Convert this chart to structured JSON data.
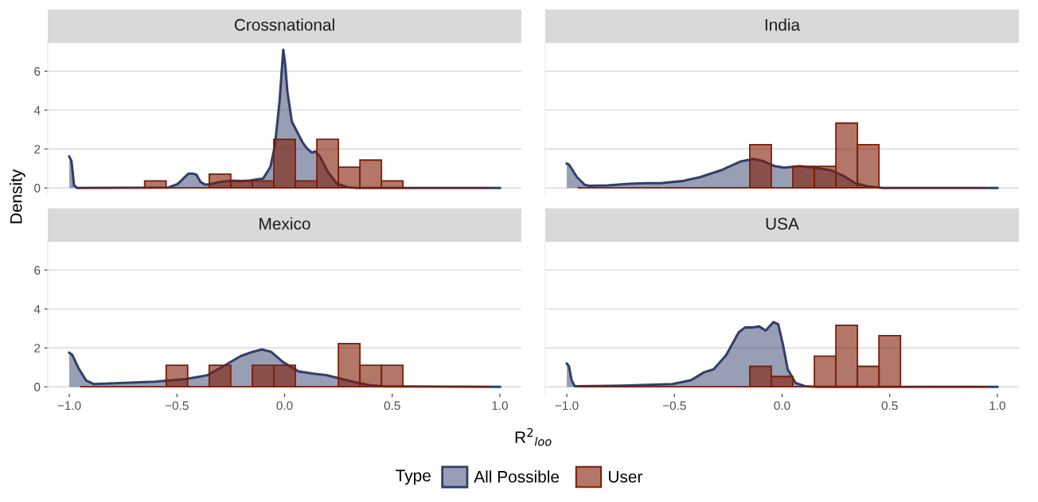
{
  "chart_data": [
    {
      "type": "histogram",
      "title": "Crossnational",
      "ylabel": "Density",
      "legend": "bottom",
      "legend_title": "Type",
      "tick_labels": "y",
      "grid": "y",
      "xlim": [
        -1.1,
        1.1
      ],
      "ylim": [
        -0.36,
        7.45
      ],
      "yticks": [
        0,
        2,
        4,
        6
      ],
      "bins": [
        -0.95,
        -0.85,
        -0.75,
        -0.65,
        -0.55,
        -0.45,
        -0.35,
        -0.25,
        -0.15,
        -0.05,
        0.05,
        0.15,
        0.25,
        0.35,
        0.45,
        0.55,
        0.65,
        0.75,
        0.85,
        0.95
      ],
      "series": [
        {
          "name": "All Possible",
          "type": "area",
          "color": "#323f6b",
          "x": [
            -1,
            -0.99,
            -0.978,
            -0.964,
            -0.54,
            -0.497,
            -0.447,
            -0.425,
            -0.41,
            -0.39,
            -0.368,
            -0.346,
            -0.3,
            -0.25,
            -0.2,
            -0.167,
            -0.124,
            -0.1,
            -0.066,
            -0.045,
            -0.023,
            -0.011,
            -0.006,
            0.003,
            0.013,
            0.034,
            0.063,
            0.085,
            0.106,
            0.128,
            0.142,
            0.164,
            0.2,
            0.243,
            0.293,
            0.336,
            1.0
          ],
          "values": [
            1.61,
            1.38,
            0.14,
            0,
            0.02,
            0.2,
            0.73,
            0.73,
            0.68,
            0.3,
            0.17,
            0.19,
            0.3,
            0.37,
            0.35,
            0.37,
            0.45,
            0.48,
            1.07,
            2.15,
            4.48,
            6.34,
            7.1,
            6.34,
            4.95,
            3.4,
            2.78,
            2.31,
            2.0,
            1.81,
            1.88,
            1.61,
            0.84,
            0.22,
            0.03,
            0,
            0
          ]
        },
        {
          "name": "User",
          "color": "#7f1d05",
          "values": [
            0,
            0,
            0,
            0.36,
            0,
            0,
            0.71,
            0.36,
            0.36,
            2.5,
            0.36,
            2.5,
            1.07,
            1.43,
            0.36,
            0,
            0,
            0,
            0
          ]
        }
      ]
    },
    {
      "type": "histogram",
      "title": "India",
      "tick_labels": false,
      "grid": "y",
      "xlim": [
        -1.1,
        1.1
      ],
      "ylim": [
        -0.36,
        7.45
      ],
      "yticks": [
        0,
        2,
        4,
        6
      ],
      "bins": [
        -0.95,
        -0.85,
        -0.75,
        -0.65,
        -0.55,
        -0.45,
        -0.35,
        -0.25,
        -0.15,
        -0.05,
        0.05,
        0.15,
        0.25,
        0.35,
        0.45,
        0.55,
        0.65,
        0.75,
        0.85,
        0.95
      ],
      "series": [
        {
          "type": "area",
          "color": "#323f6b",
          "x": [
            -1,
            -0.99,
            -0.953,
            -0.917,
            -0.896,
            -0.81,
            -0.709,
            -0.637,
            -0.565,
            -0.465,
            -0.379,
            -0.278,
            -0.192,
            -0.134,
            -0.091,
            -0.034,
            0.01,
            0.081,
            0.153,
            0.225,
            0.282,
            0.34,
            0.397,
            0.468,
            1.0
          ],
          "values": [
            1.25,
            1.2,
            0.56,
            0.16,
            0.11,
            0.13,
            0.21,
            0.24,
            0.24,
            0.35,
            0.56,
            0.93,
            1.36,
            1.49,
            1.39,
            1.12,
            1.04,
            1.12,
            1.04,
            0.91,
            0.64,
            0.24,
            0.08,
            0,
            0
          ]
        },
        {
          "color": "#7f1d05",
          "values": [
            0,
            0,
            0,
            0,
            0,
            0,
            0,
            0,
            2.22,
            0,
            1.11,
            1.11,
            3.33,
            2.22,
            0,
            0,
            0,
            0,
            0
          ]
        }
      ]
    },
    {
      "type": "histogram",
      "title": "Mexico",
      "xlabel": "R$^{2}$$_{loo}$",
      "grid": "y",
      "xlim": [
        -1.1,
        1.1
      ],
      "xticks": [
        {
          "value": -1,
          "label": "−1.0"
        },
        {
          "value": -0.5,
          "label": "−0.5"
        },
        {
          "value": 0,
          "label": "0.0"
        },
        {
          "value": 0.5,
          "label": "0.5"
        },
        {
          "value": 1,
          "label": "1.0"
        }
      ],
      "ylim": [
        -0.36,
        7.45
      ],
      "yticks": [
        0,
        2,
        4,
        6
      ],
      "bins": [
        -0.95,
        -0.85,
        -0.75,
        -0.65,
        -0.55,
        -0.45,
        -0.35,
        -0.25,
        -0.15,
        -0.05,
        0.05,
        0.15,
        0.25,
        0.35,
        0.45,
        0.55,
        0.65,
        0.75,
        0.85,
        0.95
      ],
      "series": [
        {
          "type": "area",
          "color": "#323f6b",
          "x": [
            -1,
            -0.986,
            -0.957,
            -0.922,
            -0.886,
            -0.744,
            -0.602,
            -0.46,
            -0.36,
            -0.29,
            -0.205,
            -0.148,
            -0.105,
            -0.063,
            -0.006,
            0.065,
            0.136,
            0.193,
            0.25,
            0.32,
            0.392,
            0.463,
            1.0
          ],
          "values": [
            1.75,
            1.64,
            0.95,
            0.33,
            0.14,
            0.2,
            0.26,
            0.4,
            0.59,
            1.02,
            1.57,
            1.8,
            1.92,
            1.8,
            1.26,
            0.79,
            0.67,
            0.6,
            0.45,
            0.25,
            0.09,
            0.02,
            0
          ]
        },
        {
          "color": "#7f1d05",
          "values": [
            0,
            0,
            0,
            0,
            1.11,
            0,
            1.11,
            0,
            1.11,
            1.11,
            0,
            0,
            2.22,
            1.11,
            1.11,
            0,
            0,
            0,
            0
          ]
        }
      ]
    },
    {
      "type": "histogram",
      "title": "USA",
      "tick_labels": "x",
      "grid": "y",
      "xlim": [
        -1.1,
        1.1
      ],
      "xticks": [
        {
          "value": -1,
          "label": "−1.0"
        },
        {
          "value": -0.5,
          "label": "−0.5"
        },
        {
          "value": 0,
          "label": "0.0"
        },
        {
          "value": 0.5,
          "label": "0.5"
        },
        {
          "value": 1,
          "label": "1.0"
        }
      ],
      "ylim": [
        -0.36,
        7.45
      ],
      "yticks": [
        0,
        2,
        4,
        6
      ],
      "bins": [
        -0.95,
        -0.85,
        -0.75,
        -0.65,
        -0.55,
        -0.45,
        -0.35,
        -0.25,
        -0.15,
        -0.05,
        0.05,
        0.15,
        0.25,
        0.35,
        0.45,
        0.55,
        0.65,
        0.75,
        0.85,
        0.95
      ],
      "series": [
        {
          "type": "area",
          "color": "#323f6b",
          "x": [
            -1,
            -0.99,
            -0.978,
            -0.963,
            -0.743,
            -0.509,
            -0.421,
            -0.362,
            -0.318,
            -0.26,
            -0.201,
            -0.172,
            -0.135,
            -0.106,
            -0.076,
            -0.04,
            -0.018,
            0.004,
            0.026,
            0.063,
            0.107,
            0.166,
            1.0
          ],
          "values": [
            1.19,
            1.06,
            0.35,
            0.03,
            0.06,
            0.14,
            0.35,
            0.75,
            0.9,
            1.62,
            2.81,
            3.05,
            3.05,
            3.1,
            2.89,
            3.33,
            3.21,
            2.17,
            0.9,
            0.19,
            0.03,
            0,
            0
          ]
        },
        {
          "color": "#7f1d05",
          "values": [
            0,
            0,
            0,
            0,
            0,
            0,
            0,
            0,
            1.05,
            0.53,
            0,
            1.58,
            3.16,
            1.05,
            2.63,
            0,
            0,
            0,
            0
          ]
        }
      ]
    }
  ]
}
